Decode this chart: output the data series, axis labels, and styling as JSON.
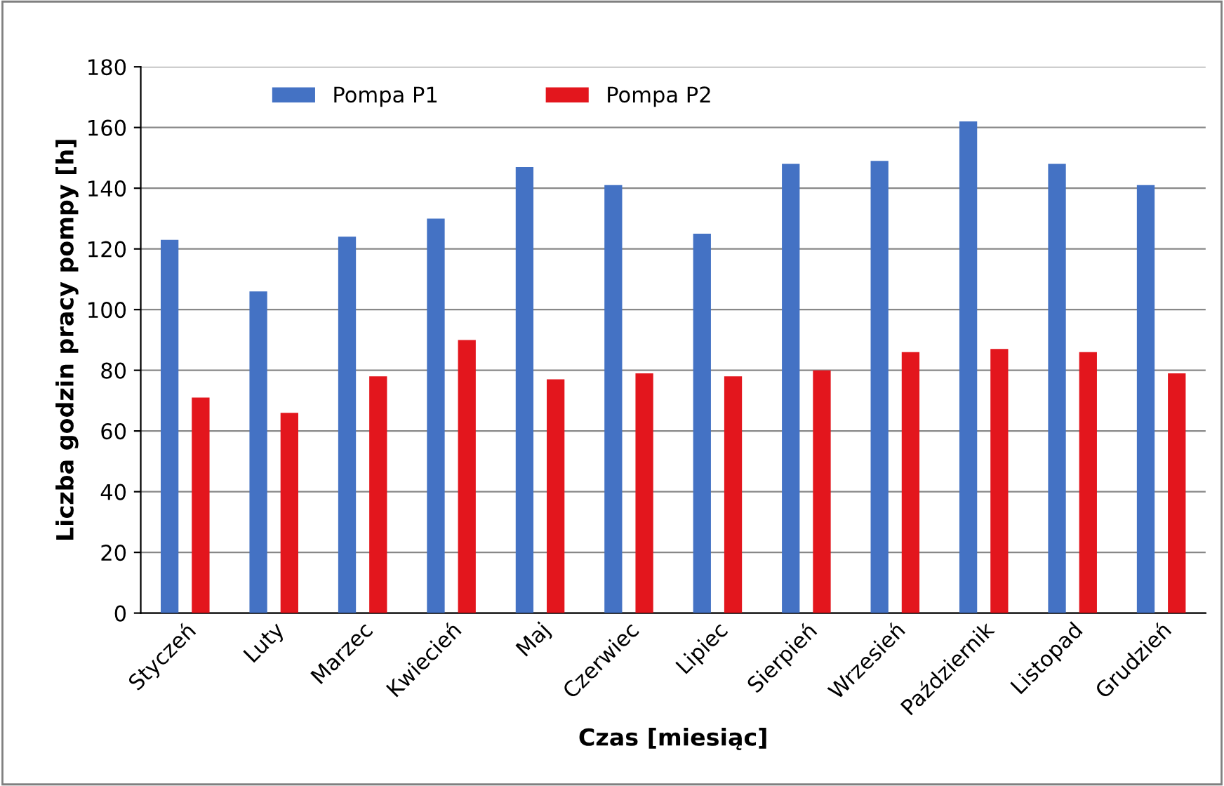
{
  "chart_data": {
    "type": "bar",
    "xlabel": "Czas [miesiąc]",
    "ylabel": "Liczba godzin pracy pompy [h]",
    "categories": [
      "Styczeń",
      "Luty",
      "Marzec",
      "Kwiecień",
      "Maj",
      "Czerwiec",
      "Lipiec",
      "Sierpień",
      "Wrzesień",
      "Październik",
      "Listopad",
      "Grudzień"
    ],
    "series": [
      {
        "name": "Pompa P1",
        "color": "#4472c4",
        "values": [
          123,
          106,
          124,
          130,
          147,
          141,
          125,
          148,
          149,
          162,
          148,
          141
        ]
      },
      {
        "name": "Pompa P2",
        "color": "#e3161d",
        "values": [
          71,
          66,
          78,
          90,
          77,
          79,
          78,
          80,
          86,
          87,
          86,
          79
        ]
      }
    ],
    "ylim": [
      0,
      180
    ],
    "yticks": [
      0,
      20,
      40,
      60,
      80,
      100,
      120,
      140,
      160,
      180
    ],
    "grid": "y",
    "legend": "top"
  }
}
